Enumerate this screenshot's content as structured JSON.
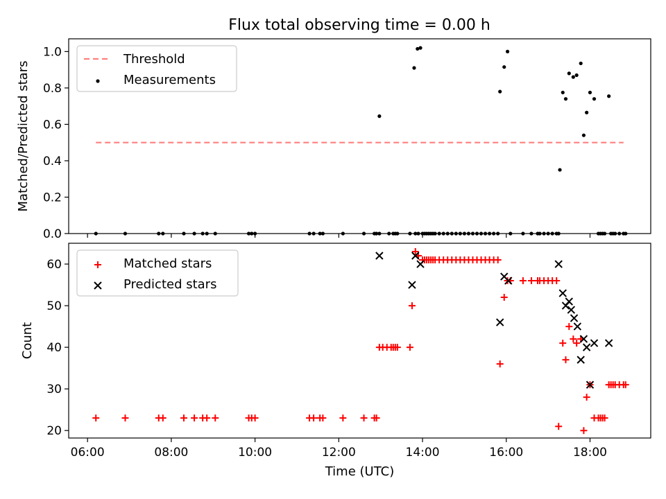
{
  "title": "Flux total observing time = 0.00 h",
  "colors": {
    "threshold": "#ff7f7f",
    "measurement": "#000000",
    "matched": "#ff0000",
    "predicted": "#000000"
  },
  "chart_data": [
    {
      "type": "scatter",
      "title": "Flux total observing time = 0.00 h",
      "ylabel": "Matched/Predicted stars",
      "xlabel": "",
      "x_unit": "hours (UTC)",
      "xlim": [
        5.55,
        19.45
      ],
      "ylim": [
        0.0,
        1.07
      ],
      "yticks": [
        0.0,
        0.2,
        0.4,
        0.6,
        0.8,
        1.0
      ],
      "ytick_labels": [
        "0.0",
        "0.2",
        "0.4",
        "0.6",
        "0.8",
        "1.0"
      ],
      "legend_position": "top-left",
      "legend": [
        "Threshold",
        "Measurements"
      ],
      "threshold": {
        "name": "Threshold",
        "y": 0.5,
        "x_range": [
          6.2,
          18.8
        ],
        "style": "dashed"
      },
      "series": [
        {
          "name": "Measurements",
          "marker": "dot",
          "x": [
            6.2,
            6.9,
            7.7,
            7.8,
            8.3,
            8.55,
            8.75,
            8.85,
            9.05,
            9.85,
            9.92,
            10.0,
            11.3,
            11.4,
            11.55,
            11.62,
            12.1,
            12.6,
            12.85,
            12.9,
            12.97,
            13.2,
            13.3,
            13.35,
            13.4,
            13.7,
            13.83,
            13.9,
            14.0,
            14.05,
            14.1,
            14.15,
            14.2,
            14.25,
            14.3,
            14.4,
            14.5,
            14.6,
            14.7,
            14.8,
            14.9,
            15.0,
            15.1,
            15.2,
            15.3,
            15.4,
            15.5,
            15.6,
            15.7,
            15.8,
            16.1,
            16.4,
            16.6,
            16.75,
            16.8,
            16.9,
            17.0,
            17.1,
            17.2,
            17.25,
            18.2,
            18.25,
            18.3,
            18.35,
            18.5,
            18.55,
            18.6,
            18.7,
            18.8,
            18.85,
            12.97,
            13.8,
            13.88,
            13.95,
            15.85,
            15.95,
            16.03,
            17.28,
            17.35,
            17.42,
            17.5,
            17.6,
            17.68,
            17.78,
            17.85,
            17.92,
            18.0,
            18.1,
            18.45
          ],
          "y": [
            0,
            0,
            0,
            0,
            0,
            0,
            0,
            0,
            0,
            0,
            0,
            0,
            0,
            0,
            0,
            0,
            0,
            0,
            0,
            0,
            0,
            0,
            0,
            0,
            0,
            0,
            0,
            0,
            0,
            0,
            0,
            0,
            0,
            0,
            0,
            0,
            0,
            0,
            0,
            0,
            0,
            0,
            0,
            0,
            0,
            0,
            0,
            0,
            0,
            0,
            0,
            0,
            0,
            0,
            0,
            0,
            0,
            0,
            0,
            0,
            0,
            0,
            0,
            0,
            0,
            0,
            0,
            0,
            0,
            0,
            0.645,
            0.91,
            1.015,
            1.02,
            0.78,
            0.915,
            1.0,
            0.35,
            0.775,
            0.74,
            0.88,
            0.86,
            0.87,
            0.935,
            0.54,
            0.665,
            0.775,
            0.74,
            0.755
          ]
        }
      ]
    },
    {
      "type": "scatter",
      "title": "",
      "xlabel": "Time (UTC)",
      "ylabel": "Count",
      "x_unit": "hours (UTC)",
      "xlim": [
        5.55,
        19.45
      ],
      "ylim": [
        18.2,
        65.0
      ],
      "xticks": [
        6,
        8,
        10,
        12,
        14,
        16,
        18
      ],
      "xtick_labels": [
        "06:00",
        "08:00",
        "10:00",
        "12:00",
        "14:00",
        "16:00",
        "18:00"
      ],
      "yticks": [
        20,
        30,
        40,
        50,
        60
      ],
      "ytick_labels": [
        "20",
        "30",
        "40",
        "50",
        "60"
      ],
      "legend_position": "top-left",
      "legend": [
        "Matched stars",
        "Predicted stars"
      ],
      "series": [
        {
          "name": "Matched stars",
          "marker": "plus",
          "x": [
            6.2,
            6.9,
            7.7,
            7.8,
            8.3,
            8.55,
            8.75,
            8.85,
            9.05,
            9.85,
            9.92,
            10.0,
            11.3,
            11.4,
            11.55,
            11.62,
            12.1,
            12.6,
            12.85,
            12.9,
            12.97,
            13.05,
            13.15,
            13.25,
            13.3,
            13.35,
            13.4,
            13.7,
            13.75,
            13.83,
            13.9,
            14.0,
            14.05,
            14.1,
            14.15,
            14.2,
            14.25,
            14.3,
            14.4,
            14.5,
            14.6,
            14.7,
            14.8,
            14.9,
            15.0,
            15.1,
            15.2,
            15.3,
            15.4,
            15.5,
            15.6,
            15.7,
            15.8,
            15.85,
            15.95,
            16.03,
            16.1,
            16.4,
            16.6,
            16.75,
            16.8,
            16.9,
            17.0,
            17.1,
            17.2,
            17.25,
            17.35,
            17.42,
            17.5,
            17.6,
            17.68,
            17.78,
            17.85,
            17.92,
            18.0,
            18.1,
            18.2,
            18.25,
            18.3,
            18.35,
            18.45,
            18.5,
            18.55,
            18.6,
            18.7,
            18.8,
            18.85
          ],
          "y": [
            23,
            23,
            23,
            23,
            23,
            23,
            23,
            23,
            23,
            23,
            23,
            23,
            23,
            23,
            23,
            23,
            23,
            23,
            23,
            23,
            40,
            40,
            40,
            40,
            40,
            40,
            40,
            40,
            50,
            63,
            62,
            61,
            61,
            61,
            61,
            61,
            61,
            61,
            61,
            61,
            61,
            61,
            61,
            61,
            61,
            61,
            61,
            61,
            61,
            61,
            61,
            61,
            61,
            36,
            52,
            56,
            56,
            56,
            56,
            56,
            56,
            56,
            56,
            56,
            56,
            21,
            41,
            37,
            45,
            42,
            41,
            42,
            20,
            28,
            31,
            23,
            23,
            23,
            23,
            23,
            31,
            31,
            31,
            31,
            31,
            31,
            31
          ]
        },
        {
          "name": "Predicted stars",
          "marker": "x",
          "x": [
            12.97,
            13.75,
            13.83,
            13.95,
            15.85,
            15.95,
            16.05,
            17.25,
            17.35,
            17.42,
            17.5,
            17.55,
            17.62,
            17.7,
            17.78,
            17.85,
            17.92,
            18.0,
            18.1,
            18.45
          ],
          "y": [
            62,
            55,
            62,
            60,
            46,
            57,
            56,
            60,
            53,
            50,
            51,
            49,
            47,
            45,
            37,
            42,
            40,
            31,
            41,
            41
          ]
        }
      ]
    }
  ]
}
